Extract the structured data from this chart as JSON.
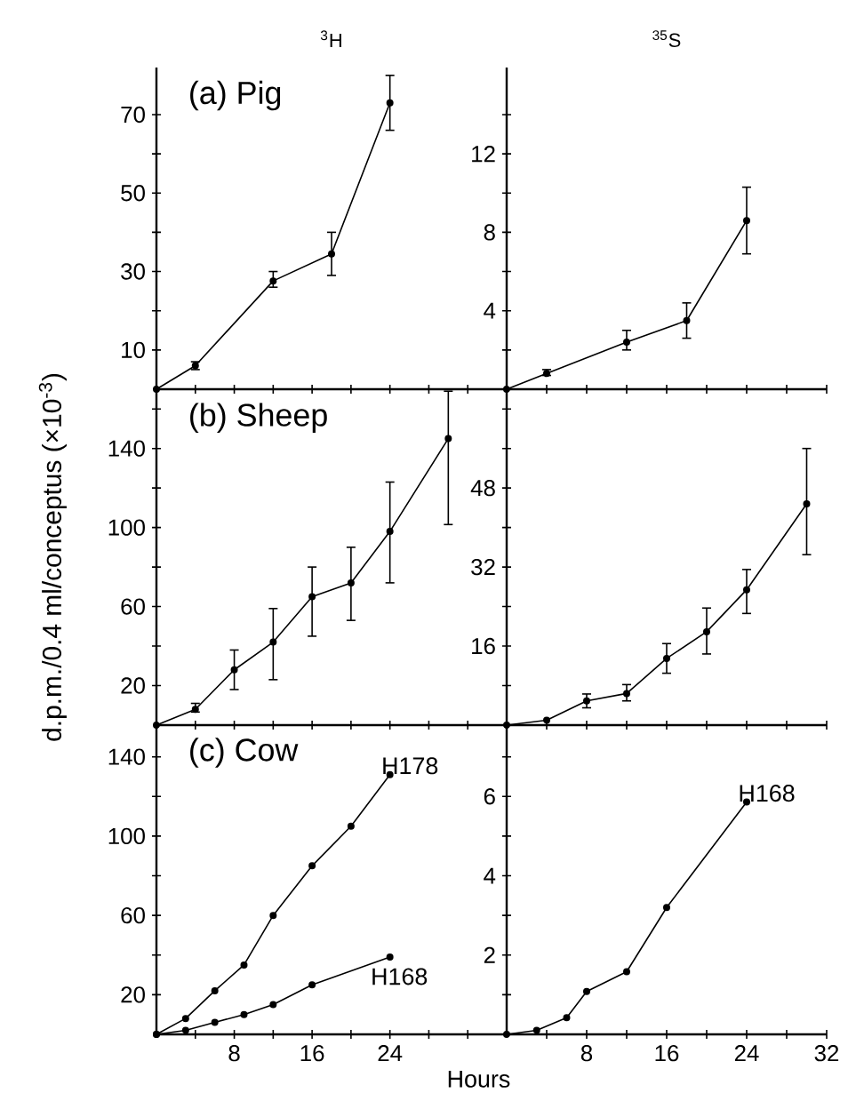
{
  "chart_data": [
    {
      "type": "line",
      "title": "$^{3}$H",
      "annotations": [
        "(a) Pig"
      ],
      "x": [
        0,
        4,
        12,
        18,
        24
      ],
      "marker": "circle",
      "line_style": "solid",
      "tick_labels": "y",
      "series": [
        {
          "color": "#000000",
          "values": [
            0,
            6,
            27.6,
            34.5,
            73
          ],
          "errors": [
            null,
            [
              5,
              7
            ],
            [
              26,
              30
            ],
            [
              29,
              40
            ],
            [
              66,
              80
            ]
          ]
        }
      ],
      "xlim": [
        0,
        36
      ],
      "xticks": [
        {
          "value": 4,
          "label": null
        },
        8,
        {
          "value": 12,
          "label": null
        },
        16,
        {
          "value": 20,
          "label": null
        },
        24,
        {
          "value": 28,
          "label": null
        },
        {
          "value": 32,
          "label": null
        }
      ],
      "ylim": [
        0,
        82
      ],
      "yticks": [
        10,
        {
          "value": 20,
          "label": null
        },
        30,
        {
          "value": 40,
          "label": null
        },
        50,
        {
          "value": 60,
          "label": null
        },
        70
      ]
    },
    {
      "type": "line",
      "title": "$^{35}$S",
      "x": [
        0,
        4,
        12,
        18,
        24
      ],
      "marker": "circle",
      "line_style": "solid",
      "tick_labels": "y",
      "series": [
        {
          "color": "#000000",
          "values": [
            0,
            0.8,
            2.4,
            3.5,
            8.6
          ],
          "errors": [
            null,
            [
              0.7,
              1.0
            ],
            [
              2.0,
              3.0
            ],
            [
              2.6,
              4.4
            ],
            [
              6.9,
              10.3
            ]
          ]
        }
      ],
      "xlim": [
        0,
        32
      ],
      "xticks": [
        {
          "value": 4,
          "label": null
        },
        8,
        {
          "value": 12,
          "label": null
        },
        16,
        {
          "value": 20,
          "label": null
        },
        24,
        {
          "value": 28,
          "label": null
        },
        32
      ],
      "ylim": [
        0,
        16.4
      ],
      "yticks": [
        {
          "value": 2,
          "label": null
        },
        4,
        {
          "value": 6,
          "label": null
        },
        8,
        {
          "value": 10,
          "label": null
        },
        12,
        {
          "value": 14,
          "label": null
        }
      ]
    },
    {
      "type": "line",
      "ylabel": "d.p.m./0.4 ml/conceptus (×10$^{-3}$)",
      "annotations": [
        "(b) Sheep"
      ],
      "x": [
        0,
        4,
        8,
        12,
        16,
        20,
        24,
        30
      ],
      "marker": "circle",
      "line_style": "solid",
      "tick_labels": "y",
      "series": [
        {
          "color": "#000000",
          "values": [
            0,
            8,
            28,
            42,
            65,
            72,
            98,
            145
          ],
          "errors": [
            null,
            [
              6.6,
              11
            ],
            [
              18,
              38
            ],
            [
              23,
              59
            ],
            [
              45,
              80
            ],
            [
              53,
              90
            ],
            [
              72,
              123
            ],
            [
              101.5,
              169
            ]
          ]
        }
      ],
      "xlim": [
        0,
        36
      ],
      "xticks": [
        {
          "value": 4,
          "label": null
        },
        8,
        {
          "value": 12,
          "label": null
        },
        16,
        {
          "value": 20,
          "label": null
        },
        24,
        {
          "value": 28,
          "label": null
        },
        {
          "value": 32,
          "label": null
        }
      ],
      "ylim": [
        0,
        170
      ],
      "yticks": [
        20,
        {
          "value": 40,
          "label": null
        },
        60,
        {
          "value": 80,
          "label": null
        },
        100,
        {
          "value": 120,
          "label": null
        },
        140,
        {
          "value": 160,
          "label": null
        }
      ]
    },
    {
      "type": "line",
      "x": [
        0,
        4,
        8,
        12,
        16,
        20,
        24,
        30
      ],
      "marker": "circle",
      "line_style": "solid",
      "tick_labels": "y",
      "series": [
        {
          "color": "#000000",
          "values": [
            0,
            1.0,
            4.9,
            6.4,
            13.5,
            18.9,
            27.4,
            44.8
          ],
          "errors": [
            null,
            null,
            [
              3.5,
              6.3
            ],
            [
              4.9,
              8.2
            ],
            [
              10.5,
              16.5
            ],
            [
              14.4,
              23.7
            ],
            [
              22.6,
              31.5
            ],
            [
              34.5,
              56
            ]
          ]
        }
      ],
      "xlim": [
        0,
        32
      ],
      "xticks": [
        {
          "value": 4,
          "label": null
        },
        8,
        {
          "value": 12,
          "label": null
        },
        16,
        {
          "value": 20,
          "label": null
        },
        24,
        {
          "value": 28,
          "label": null
        },
        32
      ],
      "ylim": [
        0,
        68
      ],
      "yticks": [
        {
          "value": 8,
          "label": null
        },
        16,
        {
          "value": 24,
          "label": null
        },
        32,
        {
          "value": 40,
          "label": null
        },
        48,
        {
          "value": 56,
          "label": null
        },
        {
          "value": 64,
          "label": null
        }
      ]
    },
    {
      "type": "line",
      "xlabel": "Hours",
      "annotations": [
        "(c) Cow"
      ],
      "marker": "circle",
      "line_style": "solid",
      "series": [
        {
          "name": "H178",
          "color": "#000000",
          "x": [
            0,
            3,
            6,
            9,
            12,
            16,
            20,
            24
          ],
          "values": [
            0,
            8,
            22,
            35,
            60,
            85,
            105,
            131
          ]
        },
        {
          "name": "H168",
          "color": "#000000",
          "x": [
            0,
            3,
            6,
            9,
            12,
            16,
            24
          ],
          "values": [
            0,
            2,
            6,
            10,
            15,
            25,
            39
          ]
        }
      ],
      "xlim": [
        0,
        36
      ],
      "xticks": [
        {
          "value": 4,
          "label": null
        },
        8,
        {
          "value": 12,
          "label": null
        },
        16,
        {
          "value": 20,
          "label": null
        },
        24,
        {
          "value": 28,
          "label": null
        },
        {
          "value": 32,
          "label": null
        }
      ],
      "ylim": [
        0,
        156
      ],
      "yticks": [
        20,
        {
          "value": 40,
          "label": null
        },
        60,
        {
          "value": 80,
          "label": null
        },
        100,
        {
          "value": 120,
          "label": null
        },
        140
      ]
    },
    {
      "type": "line",
      "marker": "circle",
      "line_style": "solid",
      "series": [
        {
          "name": "H168",
          "color": "#000000",
          "x": [
            0,
            3,
            6,
            8,
            12,
            16,
            24
          ],
          "values": [
            0,
            0.1,
            0.42,
            1.08,
            1.58,
            3.2,
            5.86
          ]
        }
      ],
      "xlim": [
        0,
        32
      ],
      "xticks": [
        {
          "value": 4,
          "label": null
        },
        8,
        {
          "value": 12,
          "label": null
        },
        16,
        {
          "value": 20,
          "label": null
        },
        24,
        {
          "value": 28,
          "label": null
        },
        32
      ],
      "ylim": [
        0,
        7.8
      ],
      "yticks": [
        {
          "value": 1,
          "label": null
        },
        2,
        {
          "value": 3,
          "label": null
        },
        4,
        {
          "value": 5,
          "label": null
        },
        6,
        {
          "value": 7,
          "label": null
        }
      ]
    }
  ]
}
